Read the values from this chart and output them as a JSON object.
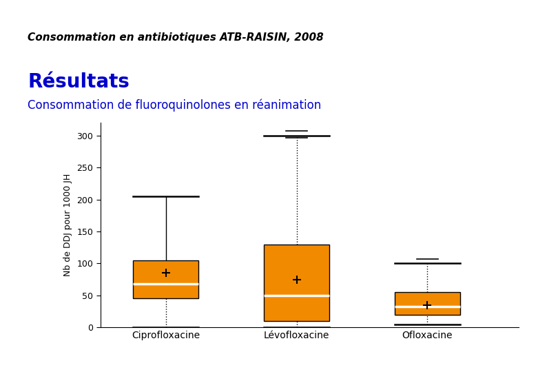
{
  "title_main": "Consommation en antibiotiques ATB-RAISIN, 2008",
  "title_sub": "Résultats",
  "subtitle": "Consommation de fluoroquinolones en réanimation",
  "ylabel": "Nb de DDJ pour 1000 JH",
  "categories": [
    "Ciprofloxacine",
    "Lévofloxacine",
    "Ofloxacine"
  ],
  "box_color": "#F28A00",
  "median_color": "#FFFFFF",
  "box_data": [
    {
      "name": "Ciprofloxacine",
      "whislo": 0,
      "q1": 45,
      "med": 68,
      "q3": 105,
      "whishi": 205,
      "mean": 85,
      "upper_solid": true,
      "fliers_high": [],
      "fliers_low": []
    },
    {
      "name": "Lévofloxacine",
      "whislo": 0,
      "q1": 10,
      "med": 50,
      "q3": 130,
      "whishi": 300,
      "mean": 75,
      "upper_solid": false,
      "fliers_high": [
        297,
        307
      ],
      "fliers_low": []
    },
    {
      "name": "Ofloxacine",
      "whislo": 5,
      "q1": 20,
      "med": 33,
      "q3": 55,
      "whishi": 100,
      "mean": 35,
      "upper_solid": false,
      "fliers_high": [
        107
      ],
      "fliers_low": []
    }
  ],
  "ylim": [
    0,
    320
  ],
  "yticks": [
    0,
    50,
    100,
    150,
    200,
    250,
    300
  ],
  "background_color": "#FFFFFF",
  "subtitle_color": "#0000CD",
  "blue_bar_color": "#4040C0",
  "resultat_color": "#0000CC"
}
